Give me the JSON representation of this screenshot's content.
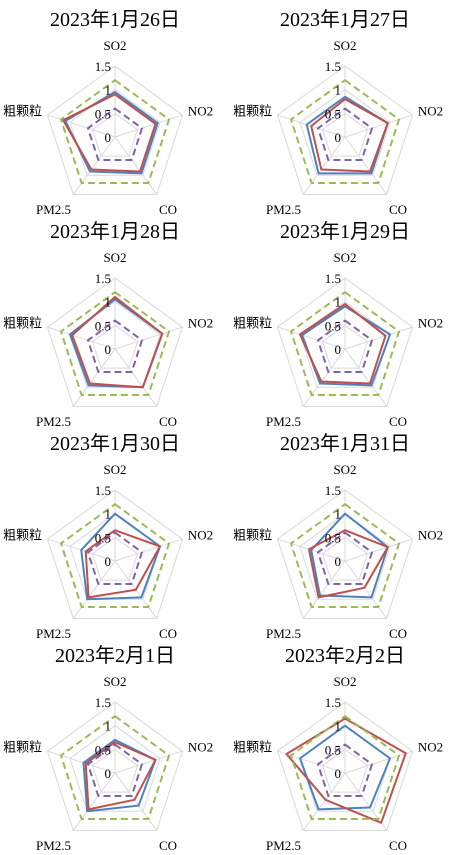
{
  "chart_data": [
    {
      "type": "radar",
      "title": "2023年1月26日",
      "axes": [
        "SO2",
        "NO2",
        "CO",
        "PM2.5",
        "粗颗粒"
      ],
      "tick_labels": [
        "0",
        "0.5",
        "1",
        "1.5"
      ],
      "rlim": [
        0,
        1.5
      ],
      "grid": true,
      "series": [
        {
          "style": "solid",
          "color": "#4f81bd",
          "values": [
            0.95,
            0.95,
            0.95,
            0.9,
            1.1
          ]
        },
        {
          "style": "solid",
          "color": "#c0504d",
          "values": [
            0.9,
            0.9,
            0.9,
            0.85,
            1.15
          ]
        },
        {
          "style": "dashed",
          "color": "#9bbb59",
          "values": [
            1.2,
            1.2,
            1.2,
            1.2,
            1.2
          ]
        },
        {
          "style": "dashed",
          "color": "#8064a2",
          "values": [
            0.6,
            0.6,
            0.6,
            0.6,
            0.6
          ]
        }
      ]
    },
    {
      "type": "radar",
      "title": "2023年1月27日",
      "axes": [
        "SO2",
        "NO2",
        "CO",
        "PM2.5",
        "粗颗粒"
      ],
      "tick_labels": [
        "0",
        "0.5",
        "1",
        "1.5"
      ],
      "rlim": [
        0,
        1.5
      ],
      "grid": true,
      "series": [
        {
          "style": "solid",
          "color": "#4f81bd",
          "values": [
            0.85,
            0.95,
            0.95,
            0.95,
            0.85
          ]
        },
        {
          "style": "solid",
          "color": "#c0504d",
          "values": [
            0.8,
            0.95,
            0.9,
            0.85,
            0.75
          ]
        },
        {
          "style": "dashed",
          "color": "#9bbb59",
          "values": [
            1.2,
            1.2,
            1.2,
            1.2,
            1.2
          ]
        },
        {
          "style": "dashed",
          "color": "#8064a2",
          "values": [
            0.6,
            0.6,
            0.6,
            0.6,
            0.6
          ]
        }
      ]
    },
    {
      "type": "radar",
      "title": "2023年1月28日",
      "axes": [
        "SO2",
        "NO2",
        "CO",
        "PM2.5",
        "粗颗粒"
      ],
      "tick_labels": [
        "0",
        "0.5",
        "1",
        "1.5"
      ],
      "rlim": [
        0,
        1.5
      ],
      "grid": true,
      "series": [
        {
          "style": "solid",
          "color": "#4f81bd",
          "values": [
            1.05,
            1.05,
            1.0,
            0.95,
            1.0
          ]
        },
        {
          "style": "solid",
          "color": "#c0504d",
          "values": [
            1.1,
            1.05,
            1.0,
            0.9,
            0.95
          ]
        },
        {
          "style": "dashed",
          "color": "#9bbb59",
          "values": [
            1.2,
            1.2,
            1.2,
            1.2,
            1.2
          ]
        },
        {
          "style": "dashed",
          "color": "#8064a2",
          "values": [
            0.6,
            0.6,
            0.6,
            0.6,
            0.6
          ]
        }
      ]
    },
    {
      "type": "radar",
      "title": "2023年1月29日",
      "axes": [
        "SO2",
        "NO2",
        "CO",
        "PM2.5",
        "粗颗粒"
      ],
      "tick_labels": [
        "0",
        "0.5",
        "1",
        "1.5"
      ],
      "rlim": [
        0,
        1.5
      ],
      "grid": true,
      "series": [
        {
          "style": "solid",
          "color": "#4f81bd",
          "values": [
            0.9,
            1.0,
            0.95,
            0.9,
            0.95
          ]
        },
        {
          "style": "solid",
          "color": "#c0504d",
          "values": [
            0.95,
            0.9,
            0.9,
            0.85,
            1.0
          ]
        },
        {
          "style": "dashed",
          "color": "#9bbb59",
          "values": [
            1.2,
            1.2,
            1.2,
            1.2,
            1.2
          ]
        },
        {
          "style": "dashed",
          "color": "#8064a2",
          "values": [
            0.6,
            0.6,
            0.6,
            0.6,
            0.6
          ]
        }
      ]
    },
    {
      "type": "radar",
      "title": "2023年1月30日",
      "axes": [
        "SO2",
        "NO2",
        "CO",
        "PM2.5",
        "粗颗粒"
      ],
      "tick_labels": [
        "0",
        "0.5",
        "1",
        "1.5"
      ],
      "rlim": [
        0,
        1.5
      ],
      "grid": true,
      "series": [
        {
          "style": "solid",
          "color": "#4f81bd",
          "values": [
            1.0,
            1.0,
            0.95,
            1.0,
            0.75
          ]
        },
        {
          "style": "solid",
          "color": "#c0504d",
          "values": [
            0.65,
            1.0,
            0.75,
            0.95,
            0.65
          ]
        },
        {
          "style": "dashed",
          "color": "#9bbb59",
          "values": [
            1.2,
            1.2,
            1.2,
            1.2,
            1.2
          ]
        },
        {
          "style": "dashed",
          "color": "#8064a2",
          "values": [
            0.6,
            0.6,
            0.6,
            0.6,
            0.6
          ]
        }
      ]
    },
    {
      "type": "radar",
      "title": "2023年1月31日",
      "axes": [
        "SO2",
        "NO2",
        "CO",
        "PM2.5",
        "粗颗粒"
      ],
      "tick_labels": [
        "0",
        "0.5",
        "1",
        "1.5"
      ],
      "rlim": [
        0,
        1.5
      ],
      "grid": true,
      "series": [
        {
          "style": "solid",
          "color": "#4f81bd",
          "values": [
            1.0,
            0.95,
            0.95,
            0.9,
            0.75
          ]
        },
        {
          "style": "solid",
          "color": "#c0504d",
          "values": [
            0.65,
            0.95,
            0.7,
            0.95,
            0.8
          ]
        },
        {
          "style": "dashed",
          "color": "#9bbb59",
          "values": [
            1.2,
            1.2,
            1.2,
            1.2,
            1.2
          ]
        },
        {
          "style": "dashed",
          "color": "#8064a2",
          "values": [
            0.6,
            0.6,
            0.6,
            0.6,
            0.6
          ]
        }
      ]
    },
    {
      "type": "radar",
      "title": "2023年2月1日",
      "axes": [
        "SO2",
        "NO2",
        "CO",
        "PM2.5",
        "粗颗粒"
      ],
      "tick_labels": [
        "0",
        "0.5",
        "1",
        "1.5"
      ],
      "rlim": [
        0,
        1.5
      ],
      "grid": true,
      "series": [
        {
          "style": "solid",
          "color": "#4f81bd",
          "values": [
            0.7,
            0.9,
            0.85,
            1.0,
            0.7
          ]
        },
        {
          "style": "solid",
          "color": "#c0504d",
          "values": [
            0.65,
            0.9,
            0.7,
            0.95,
            0.65
          ]
        },
        {
          "style": "dashed",
          "color": "#9bbb59",
          "values": [
            1.2,
            1.2,
            1.2,
            1.2,
            1.2
          ]
        },
        {
          "style": "dashed",
          "color": "#8064a2",
          "values": [
            0.6,
            0.6,
            0.6,
            0.6,
            0.6
          ]
        }
      ]
    },
    {
      "type": "radar",
      "title": "2023年2月2日",
      "axes": [
        "SO2",
        "NO2",
        "CO",
        "PM2.5",
        "粗颗粒"
      ],
      "tick_labels": [
        "0",
        "0.5",
        "1",
        "1.5"
      ],
      "rlim": [
        0,
        1.5
      ],
      "grid": true,
      "series": [
        {
          "style": "solid",
          "color": "#4f81bd",
          "values": [
            1.0,
            1.0,
            0.9,
            0.95,
            1.0
          ]
        },
        {
          "style": "solid",
          "color": "#c0504d",
          "values": [
            1.15,
            1.35,
            1.3,
            0.7,
            1.3
          ]
        },
        {
          "style": "dashed",
          "color": "#9bbb59",
          "values": [
            1.2,
            1.2,
            1.2,
            1.2,
            1.2
          ]
        },
        {
          "style": "dashed",
          "color": "#8064a2",
          "values": [
            0.6,
            0.6,
            0.6,
            0.6,
            0.6
          ]
        }
      ]
    }
  ]
}
